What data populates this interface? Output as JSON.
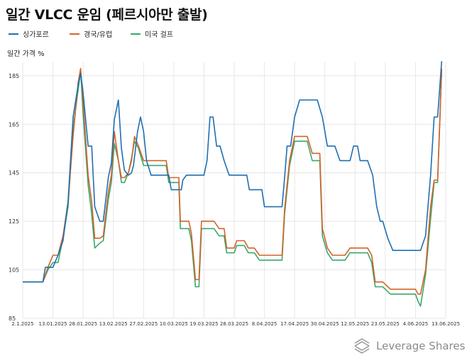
{
  "title": "일간 VLCC 운임 (페르시아만 출발)",
  "brand": "Leverage Shares",
  "chart_data": {
    "type": "line",
    "ylabel": "일간 가격 %",
    "xlabel": "",
    "ylim": [
      85,
      190
    ],
    "yticks": [
      85,
      105,
      125,
      145,
      165,
      185
    ],
    "x_tick_labels": [
      "2.1.2025",
      "13.01.2025",
      "28.01.2025",
      "13.02.2025",
      "27.02.2025",
      "10.03.2025",
      "19.03.2025",
      "28.03.2025",
      "8.04.2025",
      "17.04.2025",
      "30.04.2025",
      "12.05.2025",
      "23.05.2025",
      "4.06.2025",
      "13.06.2025"
    ],
    "grid": true,
    "legend_position": "top-left",
    "series": [
      {
        "name": "싱가포르",
        "color": "#1f6fb2",
        "values": [
          [
            0,
            100
          ],
          [
            4,
            100
          ],
          [
            4.5,
            106
          ],
          [
            6,
            106
          ],
          [
            7,
            111
          ],
          [
            8,
            117
          ],
          [
            9,
            133
          ],
          [
            10,
            168
          ],
          [
            11,
            181
          ],
          [
            11.5,
            186
          ],
          [
            12,
            178
          ],
          [
            13,
            156
          ],
          [
            13.7,
            156
          ],
          [
            14.3,
            131
          ],
          [
            15.3,
            125
          ],
          [
            16,
            125
          ],
          [
            17,
            143
          ],
          [
            17.6,
            149
          ],
          [
            18.2,
            167
          ],
          [
            19,
            175
          ],
          [
            19.6,
            155
          ],
          [
            20.2,
            146
          ],
          [
            21,
            144
          ],
          [
            21.6,
            145
          ],
          [
            22,
            148
          ],
          [
            22.8,
            162
          ],
          [
            23.4,
            168
          ],
          [
            24,
            162
          ],
          [
            24.6,
            150
          ],
          [
            25.5,
            144
          ],
          [
            29,
            144
          ],
          [
            29.5,
            138
          ],
          [
            31.5,
            138
          ],
          [
            31.8,
            142
          ],
          [
            32.5,
            144
          ],
          [
            36,
            144
          ],
          [
            36.6,
            150
          ],
          [
            37.2,
            168
          ],
          [
            37.8,
            168
          ],
          [
            38.5,
            156
          ],
          [
            39.2,
            156
          ],
          [
            40,
            150
          ],
          [
            41,
            144
          ],
          [
            44.5,
            144
          ],
          [
            45,
            138
          ],
          [
            47.5,
            138
          ],
          [
            48,
            131
          ],
          [
            51.5,
            131
          ],
          [
            52,
            143
          ],
          [
            52.5,
            156
          ],
          [
            53.2,
            156
          ],
          [
            54,
            168
          ],
          [
            55,
            175
          ],
          [
            58.5,
            175
          ],
          [
            59.5,
            168
          ],
          [
            60.5,
            156
          ],
          [
            62,
            156
          ],
          [
            63,
            150
          ],
          [
            65,
            150
          ],
          [
            65.7,
            156
          ],
          [
            66.5,
            156
          ],
          [
            67,
            150
          ],
          [
            68.5,
            150
          ],
          [
            69.5,
            144
          ],
          [
            70.3,
            131
          ],
          [
            71,
            125
          ],
          [
            71.5,
            125
          ],
          [
            72.5,
            118
          ],
          [
            73.5,
            113
          ],
          [
            79,
            113
          ],
          [
            80,
            119
          ],
          [
            81,
            144
          ],
          [
            81.7,
            168
          ],
          [
            82.4,
            168
          ],
          [
            83.2,
            191
          ]
        ]
      },
      {
        "name": "경국/유럽",
        "color": "#d4622a",
        "values": [
          [
            0,
            100
          ],
          [
            4,
            100
          ],
          [
            5,
            106
          ],
          [
            6,
            111
          ],
          [
            7,
            111
          ],
          [
            8,
            119
          ],
          [
            9,
            133
          ],
          [
            10,
            160
          ],
          [
            11,
            182
          ],
          [
            11.5,
            188
          ],
          [
            12,
            174
          ],
          [
            13,
            144
          ],
          [
            13.7,
            133
          ],
          [
            14.3,
            118
          ],
          [
            15.3,
            118
          ],
          [
            16,
            119
          ],
          [
            17,
            137
          ],
          [
            17.6,
            144
          ],
          [
            18.2,
            162
          ],
          [
            19,
            150
          ],
          [
            19.6,
            143
          ],
          [
            20.2,
            143
          ],
          [
            21,
            145
          ],
          [
            21.6,
            150
          ],
          [
            22.2,
            160
          ],
          [
            23,
            156
          ],
          [
            24,
            150
          ],
          [
            28.5,
            150
          ],
          [
            29,
            143
          ],
          [
            31,
            143
          ],
          [
            31.3,
            125
          ],
          [
            33,
            125
          ],
          [
            33.5,
            120
          ],
          [
            34.3,
            101
          ],
          [
            35,
            101
          ],
          [
            35.5,
            125
          ],
          [
            37.5,
            125
          ],
          [
            38,
            125
          ],
          [
            39,
            122
          ],
          [
            40,
            122
          ],
          [
            40.5,
            114
          ],
          [
            42,
            114
          ],
          [
            42.5,
            117
          ],
          [
            44,
            117
          ],
          [
            44.8,
            114
          ],
          [
            46,
            114
          ],
          [
            47,
            111
          ],
          [
            51.5,
            111
          ],
          [
            52,
            130
          ],
          [
            53,
            150
          ],
          [
            54,
            160
          ],
          [
            56.5,
            160
          ],
          [
            57.5,
            153
          ],
          [
            59,
            153
          ],
          [
            59.5,
            122
          ],
          [
            60.5,
            114
          ],
          [
            61.5,
            111
          ],
          [
            64,
            111
          ],
          [
            65,
            114
          ],
          [
            68.5,
            114
          ],
          [
            69.3,
            111
          ],
          [
            70,
            100
          ],
          [
            71.5,
            100
          ],
          [
            72,
            99
          ],
          [
            73,
            97
          ],
          [
            78,
            97
          ],
          [
            78.5,
            95
          ],
          [
            79,
            95
          ],
          [
            80,
            105
          ],
          [
            81,
            131
          ],
          [
            81.7,
            142
          ],
          [
            82.4,
            142
          ],
          [
            83.2,
            188
          ]
        ]
      },
      {
        "name": "미국 걸프",
        "color": "#3aa86b",
        "values": [
          [
            0,
            100
          ],
          [
            4,
            100
          ],
          [
            5,
            105
          ],
          [
            6,
            108
          ],
          [
            7,
            108
          ],
          [
            8,
            118
          ],
          [
            9,
            131
          ],
          [
            10,
            163
          ],
          [
            11,
            179
          ],
          [
            11.5,
            187
          ],
          [
            12,
            169
          ],
          [
            13,
            140
          ],
          [
            13.7,
            128
          ],
          [
            14.3,
            114
          ],
          [
            15.3,
            116
          ],
          [
            16,
            117
          ],
          [
            17,
            134
          ],
          [
            17.6,
            141
          ],
          [
            18.2,
            157
          ],
          [
            19,
            150
          ],
          [
            19.6,
            141
          ],
          [
            20.2,
            141
          ],
          [
            21,
            145
          ],
          [
            21.6,
            151
          ],
          [
            22.2,
            158
          ],
          [
            23,
            155
          ],
          [
            24,
            148
          ],
          [
            28.5,
            148
          ],
          [
            29,
            141
          ],
          [
            31,
            141
          ],
          [
            31.3,
            122
          ],
          [
            33,
            122
          ],
          [
            33.5,
            117
          ],
          [
            34.3,
            98
          ],
          [
            35,
            98
          ],
          [
            35.5,
            122
          ],
          [
            37.5,
            122
          ],
          [
            38,
            122
          ],
          [
            39,
            119
          ],
          [
            40,
            119
          ],
          [
            40.5,
            112
          ],
          [
            42,
            112
          ],
          [
            42.5,
            115
          ],
          [
            44,
            115
          ],
          [
            44.8,
            112
          ],
          [
            46,
            112
          ],
          [
            47,
            109
          ],
          [
            51.5,
            109
          ],
          [
            52,
            128
          ],
          [
            53,
            148
          ],
          [
            54,
            158
          ],
          [
            56.5,
            158
          ],
          [
            57.5,
            150
          ],
          [
            59,
            150
          ],
          [
            59.5,
            119
          ],
          [
            60.5,
            112
          ],
          [
            61.5,
            109
          ],
          [
            64,
            109
          ],
          [
            65,
            112
          ],
          [
            68.5,
            112
          ],
          [
            69.3,
            108
          ],
          [
            70,
            98
          ],
          [
            71.5,
            98
          ],
          [
            72,
            97
          ],
          [
            73,
            95
          ],
          [
            78,
            95
          ],
          [
            78.5,
            92
          ],
          [
            79,
            90
          ],
          [
            80,
            103
          ],
          [
            81,
            126
          ],
          [
            81.7,
            141
          ],
          [
            82.4,
            141
          ],
          [
            83.2,
            187
          ]
        ]
      }
    ]
  }
}
